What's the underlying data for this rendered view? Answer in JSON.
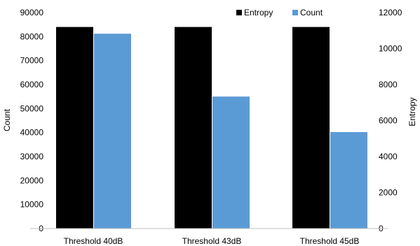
{
  "chart_data": {
    "type": "bar",
    "categories": [
      "Threshold 40dB",
      "Threshold 43dB",
      "Threshold 45dB"
    ],
    "series": [
      {
        "name": "Entropy",
        "axis": "right",
        "color": "#000000",
        "values": [
          11200,
          11200,
          11200
        ]
      },
      {
        "name": "Count",
        "axis": "left",
        "color": "#5b9bd5",
        "values": [
          81200,
          55000,
          40200
        ]
      }
    ],
    "ylabel": "Count",
    "y2label": "Entropy",
    "ylim": [
      0,
      90000
    ],
    "y2lim": [
      0,
      12000
    ],
    "yticks": [
      "0",
      "10000",
      "20000",
      "30000",
      "40000",
      "50000",
      "60000",
      "70000",
      "80000",
      "90000"
    ],
    "y2ticks": [
      "0",
      "2000",
      "4000",
      "6000",
      "8000",
      "10000",
      "12000"
    ],
    "legend_position": "top-right",
    "grid": false
  }
}
